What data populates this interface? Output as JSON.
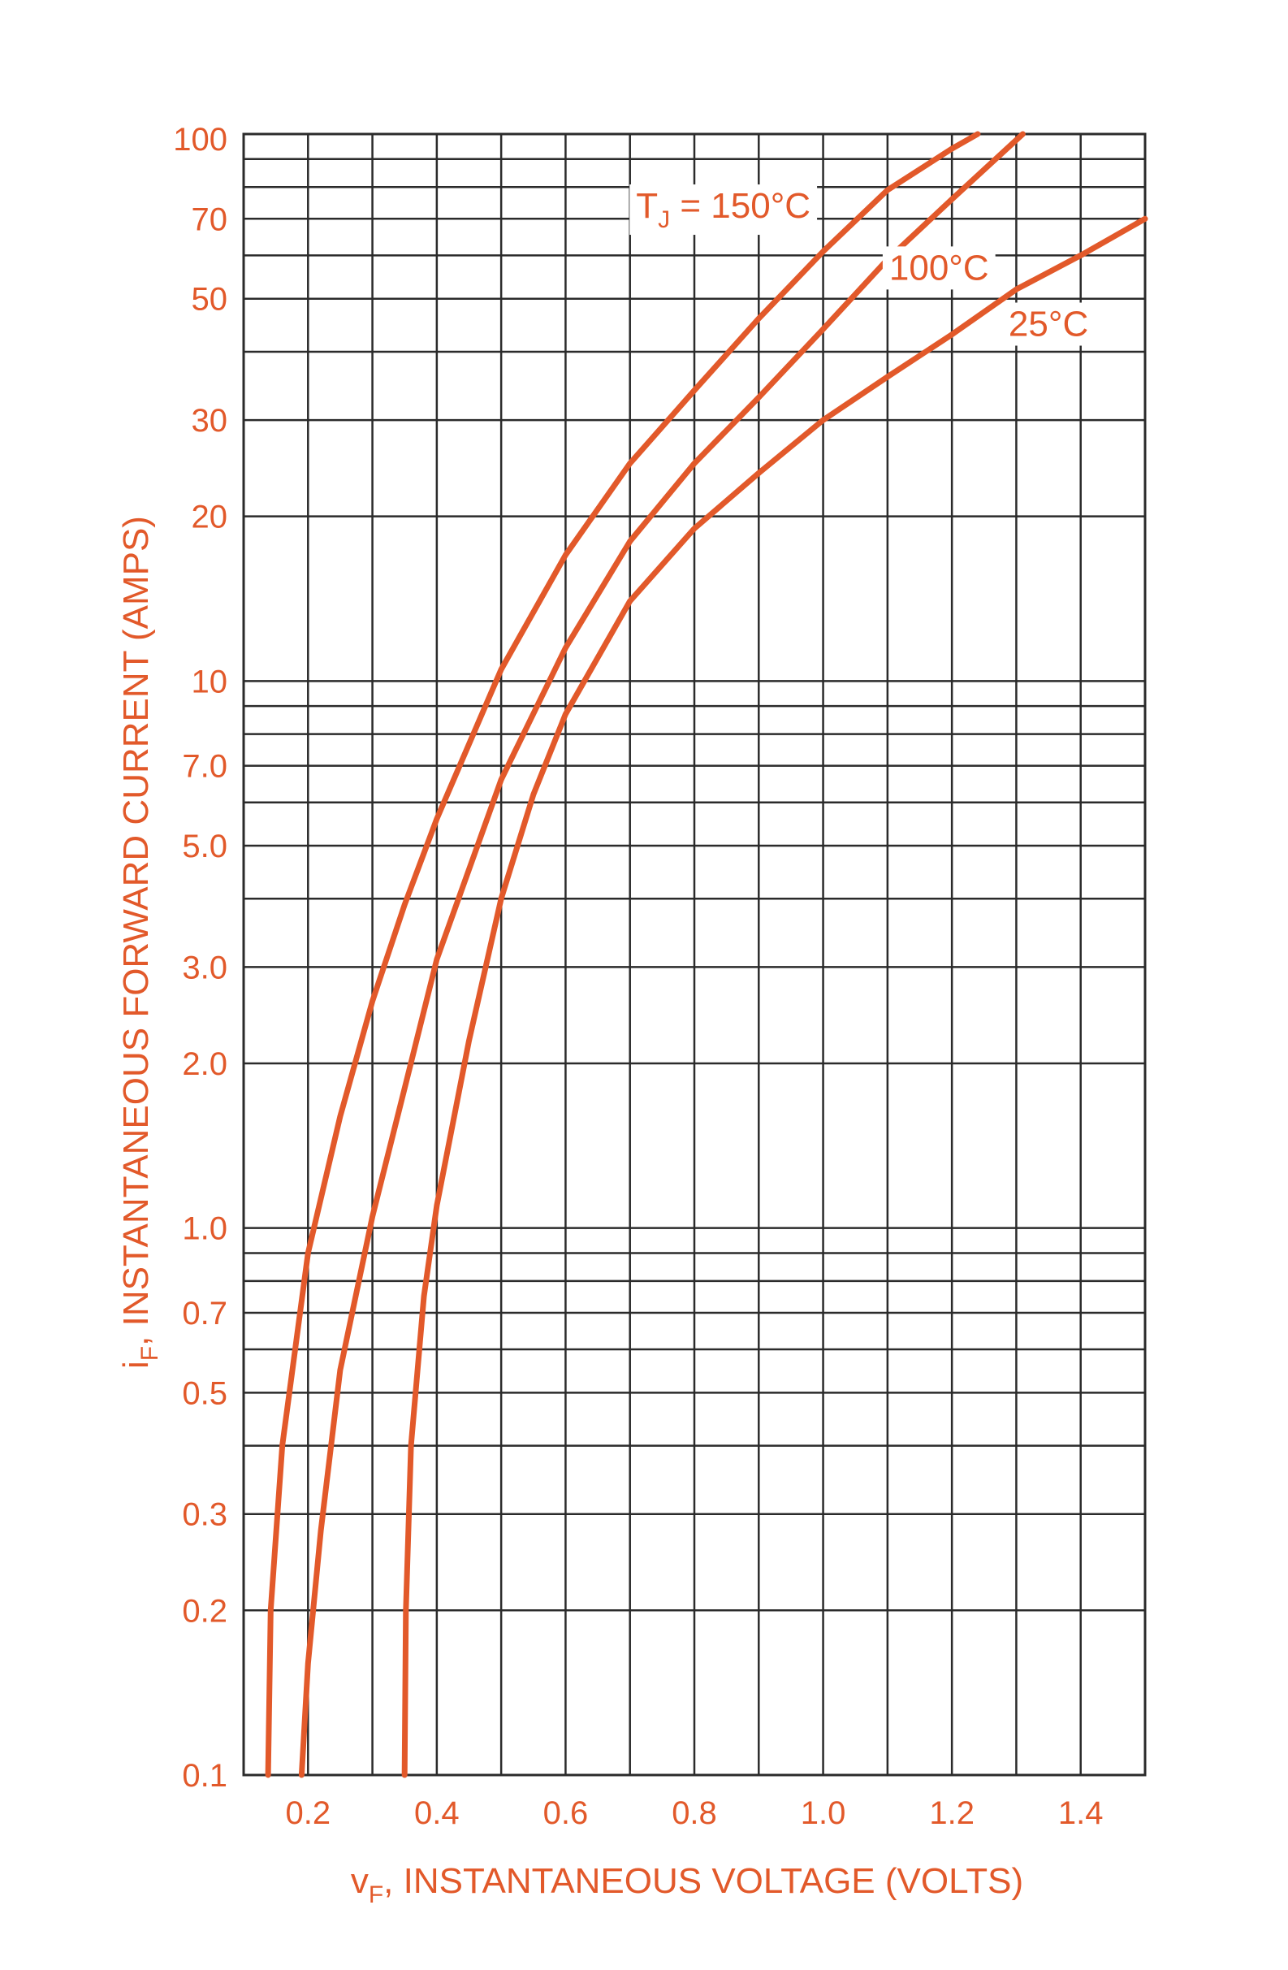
{
  "colors": {
    "curve": "#e2592a",
    "text": "#e2592a",
    "grid": "#2b2b2b",
    "background": "#ffffff"
  },
  "chart_data": {
    "type": "line",
    "title": "",
    "xlabel": {
      "main": "v",
      "sub": "F",
      "rest": ", INSTANTANEOUS VOLTAGE (VOLTS)"
    },
    "ylabel": {
      "main": "i",
      "sub": "F",
      "rest": ", INSTANTANEOUS FORWARD CURRENT (AMPS)"
    },
    "x_scale": "linear",
    "y_scale": "log",
    "xlim": [
      0.1,
      1.5
    ],
    "ylim": [
      0.1,
      100
    ],
    "grid": true,
    "x_ticks": [
      {
        "value": 0.2,
        "label": "0.2"
      },
      {
        "value": 0.4,
        "label": "0.4"
      },
      {
        "value": 0.6,
        "label": "0.6"
      },
      {
        "value": 0.8,
        "label": "0.8"
      },
      {
        "value": 1.0,
        "label": "1.0"
      },
      {
        "value": 1.2,
        "label": "1.2"
      },
      {
        "value": 1.4,
        "label": "1.4"
      }
    ],
    "x_gridlines": [
      0.1,
      0.2,
      0.3,
      0.4,
      0.5,
      0.6,
      0.7,
      0.8,
      0.9,
      1.0,
      1.1,
      1.2,
      1.3,
      1.4,
      1.5
    ],
    "y_ticks": [
      {
        "value": 0.1,
        "label": "0.1"
      },
      {
        "value": 0.2,
        "label": "0.2"
      },
      {
        "value": 0.3,
        "label": "0.3"
      },
      {
        "value": 0.5,
        "label": "0.5"
      },
      {
        "value": 0.7,
        "label": "0.7"
      },
      {
        "value": 1,
        "label": "1.0"
      },
      {
        "value": 2,
        "label": "2.0"
      },
      {
        "value": 3,
        "label": "3.0"
      },
      {
        "value": 5,
        "label": "5.0"
      },
      {
        "value": 7,
        "label": "7.0"
      },
      {
        "value": 10,
        "label": "10"
      },
      {
        "value": 20,
        "label": "20"
      },
      {
        "value": 30,
        "label": "30"
      },
      {
        "value": 50,
        "label": "50"
      },
      {
        "value": 70,
        "label": "70"
      },
      {
        "value": 100,
        "label": "100"
      }
    ],
    "y_gridlines": [
      0.1,
      0.2,
      0.3,
      0.4,
      0.5,
      0.6,
      0.7,
      0.8,
      0.9,
      1,
      2,
      3,
      4,
      5,
      6,
      7,
      8,
      9,
      10,
      20,
      30,
      40,
      50,
      60,
      70,
      80,
      90,
      100
    ],
    "series": [
      {
        "label_main": "T",
        "label_sub": "J",
        "label_rest": " = 150°C",
        "label_at": {
          "x": 0.845,
          "y": 74
        },
        "points": [
          [
            0.138,
            0.1
          ],
          [
            0.142,
            0.2
          ],
          [
            0.16,
            0.4
          ],
          [
            0.2,
            0.9
          ],
          [
            0.25,
            1.6
          ],
          [
            0.3,
            2.6
          ],
          [
            0.35,
            3.9
          ],
          [
            0.4,
            5.6
          ],
          [
            0.5,
            10.5
          ],
          [
            0.6,
            17
          ],
          [
            0.7,
            25
          ],
          [
            0.8,
            34
          ],
          [
            0.9,
            46
          ],
          [
            1.0,
            61
          ],
          [
            1.1,
            79
          ],
          [
            1.2,
            94
          ],
          [
            1.24,
            100
          ]
        ]
      },
      {
        "label_main": "100°C",
        "label_sub": "",
        "label_rest": "",
        "label_at": {
          "x": 1.18,
          "y": 57
        },
        "points": [
          [
            0.19,
            0.1
          ],
          [
            0.2,
            0.16
          ],
          [
            0.22,
            0.28
          ],
          [
            0.25,
            0.55
          ],
          [
            0.3,
            1.05
          ],
          [
            0.35,
            1.8
          ],
          [
            0.4,
            3.1
          ],
          [
            0.5,
            6.6
          ],
          [
            0.6,
            11.5
          ],
          [
            0.7,
            18
          ],
          [
            0.8,
            25
          ],
          [
            0.9,
            33
          ],
          [
            1.0,
            44
          ],
          [
            1.1,
            59
          ],
          [
            1.2,
            76
          ],
          [
            1.31,
            100
          ]
        ]
      },
      {
        "label_main": "25°C",
        "label_sub": "",
        "label_rest": "",
        "label_at": {
          "x": 1.35,
          "y": 45
        },
        "points": [
          [
            0.35,
            0.1
          ],
          [
            0.352,
            0.2
          ],
          [
            0.36,
            0.4
          ],
          [
            0.38,
            0.75
          ],
          [
            0.4,
            1.1
          ],
          [
            0.45,
            2.2
          ],
          [
            0.5,
            4.0
          ],
          [
            0.55,
            6.2
          ],
          [
            0.6,
            8.7
          ],
          [
            0.7,
            14
          ],
          [
            0.8,
            19
          ],
          [
            0.9,
            24
          ],
          [
            1.0,
            30
          ],
          [
            1.1,
            36
          ],
          [
            1.2,
            43
          ],
          [
            1.3,
            52
          ],
          [
            1.4,
            60
          ],
          [
            1.5,
            70
          ]
        ]
      }
    ]
  }
}
